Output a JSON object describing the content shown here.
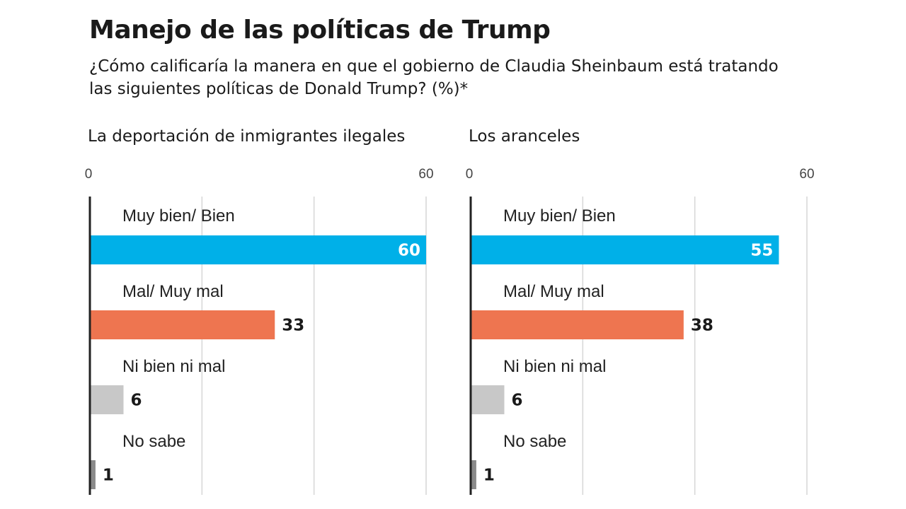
{
  "title": "Manejo de las políticas de Trump",
  "subtitle": "¿Cómo calificaría la manera en que el gobierno de Claudia Sheinbaum está tratando las siguientes políticas de Donald Trump? (%)*",
  "colors": {
    "Muy bien/ Bien": "#00b0e8",
    "Mal/ Muy mal": "#ee7550",
    "Ni bien ni mal": "#c8c8c8",
    "No sabe": "#8a8a8a"
  },
  "chart_data": [
    {
      "type": "bar",
      "orientation": "horizontal",
      "title": "La deportación de inmigrantes ilegales",
      "categories": [
        "Muy bien/ Bien",
        "Mal/ Muy mal",
        "Ni bien ni mal",
        "No sabe"
      ],
      "values": [
        60,
        33,
        6,
        1
      ],
      "xlim": [
        0,
        60
      ],
      "tick_labels": [
        "0",
        "60"
      ],
      "gridlines": [
        0,
        20,
        40,
        60
      ],
      "unit": "%"
    },
    {
      "type": "bar",
      "orientation": "horizontal",
      "title": "Los aranceles",
      "categories": [
        "Muy bien/ Bien",
        "Mal/ Muy mal",
        "Ni bien ni mal",
        "No sabe"
      ],
      "values": [
        55,
        38,
        6,
        1
      ],
      "xlim": [
        0,
        60
      ],
      "tick_labels": [
        "0",
        "60"
      ],
      "gridlines": [
        0,
        20,
        40,
        60
      ],
      "unit": "%"
    }
  ]
}
